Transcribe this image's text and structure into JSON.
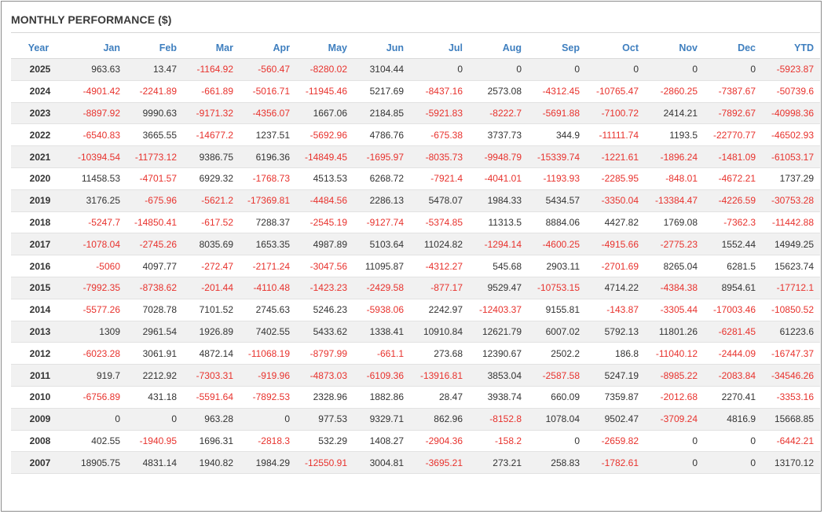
{
  "title": "MONTHLY PERFORMANCE ($)",
  "colors": {
    "header": "#3f7fbf",
    "negative": "#e8322d",
    "stripe": "#f1f1f1"
  },
  "columns": [
    "Year",
    "Jan",
    "Feb",
    "Mar",
    "Apr",
    "May",
    "Jun",
    "Jul",
    "Aug",
    "Sep",
    "Oct",
    "Nov",
    "Dec",
    "YTD"
  ],
  "rows": [
    [
      "2025",
      "963.63",
      "13.47",
      "-1164.92",
      "-560.47",
      "-8280.02",
      "3104.44",
      "0",
      "0",
      "0",
      "0",
      "0",
      "0",
      "-5923.87"
    ],
    [
      "2024",
      "-4901.42",
      "-2241.89",
      "-661.89",
      "-5016.71",
      "-11945.46",
      "5217.69",
      "-8437.16",
      "2573.08",
      "-4312.45",
      "-10765.47",
      "-2860.25",
      "-7387.67",
      "-50739.6"
    ],
    [
      "2023",
      "-8897.92",
      "9990.63",
      "-9171.32",
      "-4356.07",
      "1667.06",
      "2184.85",
      "-5921.83",
      "-8222.7",
      "-5691.88",
      "-7100.72",
      "2414.21",
      "-7892.67",
      "-40998.36"
    ],
    [
      "2022",
      "-6540.83",
      "3665.55",
      "-14677.2",
      "1237.51",
      "-5692.96",
      "4786.76",
      "-675.38",
      "3737.73",
      "344.9",
      "-11111.74",
      "1193.5",
      "-22770.77",
      "-46502.93"
    ],
    [
      "2021",
      "-10394.54",
      "-11773.12",
      "9386.75",
      "6196.36",
      "-14849.45",
      "-1695.97",
      "-8035.73",
      "-9948.79",
      "-15339.74",
      "-1221.61",
      "-1896.24",
      "-1481.09",
      "-61053.17"
    ],
    [
      "2020",
      "11458.53",
      "-4701.57",
      "6929.32",
      "-1768.73",
      "4513.53",
      "6268.72",
      "-7921.4",
      "-4041.01",
      "-1193.93",
      "-2285.95",
      "-848.01",
      "-4672.21",
      "1737.29"
    ],
    [
      "2019",
      "3176.25",
      "-675.96",
      "-5621.2",
      "-17369.81",
      "-4484.56",
      "2286.13",
      "5478.07",
      "1984.33",
      "5434.57",
      "-3350.04",
      "-13384.47",
      "-4226.59",
      "-30753.28"
    ],
    [
      "2018",
      "-5247.7",
      "-14850.41",
      "-617.52",
      "7288.37",
      "-2545.19",
      "-9127.74",
      "-5374.85",
      "11313.5",
      "8884.06",
      "4427.82",
      "1769.08",
      "-7362.3",
      "-11442.88"
    ],
    [
      "2017",
      "-1078.04",
      "-2745.26",
      "8035.69",
      "1653.35",
      "4987.89",
      "5103.64",
      "11024.82",
      "-1294.14",
      "-4600.25",
      "-4915.66",
      "-2775.23",
      "1552.44",
      "14949.25"
    ],
    [
      "2016",
      "-5060",
      "4097.77",
      "-272.47",
      "-2171.24",
      "-3047.56",
      "11095.87",
      "-4312.27",
      "545.68",
      "2903.11",
      "-2701.69",
      "8265.04",
      "6281.5",
      "15623.74"
    ],
    [
      "2015",
      "-7992.35",
      "-8738.62",
      "-201.44",
      "-4110.48",
      "-1423.23",
      "-2429.58",
      "-877.17",
      "9529.47",
      "-10753.15",
      "4714.22",
      "-4384.38",
      "8954.61",
      "-17712.1"
    ],
    [
      "2014",
      "-5577.26",
      "7028.78",
      "7101.52",
      "2745.63",
      "5246.23",
      "-5938.06",
      "2242.97",
      "-12403.37",
      "9155.81",
      "-143.87",
      "-3305.44",
      "-17003.46",
      "-10850.52"
    ],
    [
      "2013",
      "1309",
      "2961.54",
      "1926.89",
      "7402.55",
      "5433.62",
      "1338.41",
      "10910.84",
      "12621.79",
      "6007.02",
      "5792.13",
      "11801.26",
      "-6281.45",
      "61223.6"
    ],
    [
      "2012",
      "-6023.28",
      "3061.91",
      "4872.14",
      "-11068.19",
      "-8797.99",
      "-661.1",
      "273.68",
      "12390.67",
      "2502.2",
      "186.8",
      "-11040.12",
      "-2444.09",
      "-16747.37"
    ],
    [
      "2011",
      "919.7",
      "2212.92",
      "-7303.31",
      "-919.96",
      "-4873.03",
      "-6109.36",
      "-13916.81",
      "3853.04",
      "-2587.58",
      "5247.19",
      "-8985.22",
      "-2083.84",
      "-34546.26"
    ],
    [
      "2010",
      "-6756.89",
      "431.18",
      "-5591.64",
      "-7892.53",
      "2328.96",
      "1882.86",
      "28.47",
      "3938.74",
      "660.09",
      "7359.87",
      "-2012.68",
      "2270.41",
      "-3353.16"
    ],
    [
      "2009",
      "0",
      "0",
      "963.28",
      "0",
      "977.53",
      "9329.71",
      "862.96",
      "-8152.8",
      "1078.04",
      "9502.47",
      "-3709.24",
      "4816.9",
      "15668.85"
    ],
    [
      "2008",
      "402.55",
      "-1940.95",
      "1696.31",
      "-2818.3",
      "532.29",
      "1408.27",
      "-2904.36",
      "-158.2",
      "0",
      "-2659.82",
      "0",
      "0",
      "-6442.21"
    ],
    [
      "2007",
      "18905.75",
      "4831.14",
      "1940.82",
      "1984.29",
      "-12550.91",
      "3004.81",
      "-3695.21",
      "273.21",
      "258.83",
      "-1782.61",
      "0",
      "0",
      "13170.12"
    ]
  ]
}
